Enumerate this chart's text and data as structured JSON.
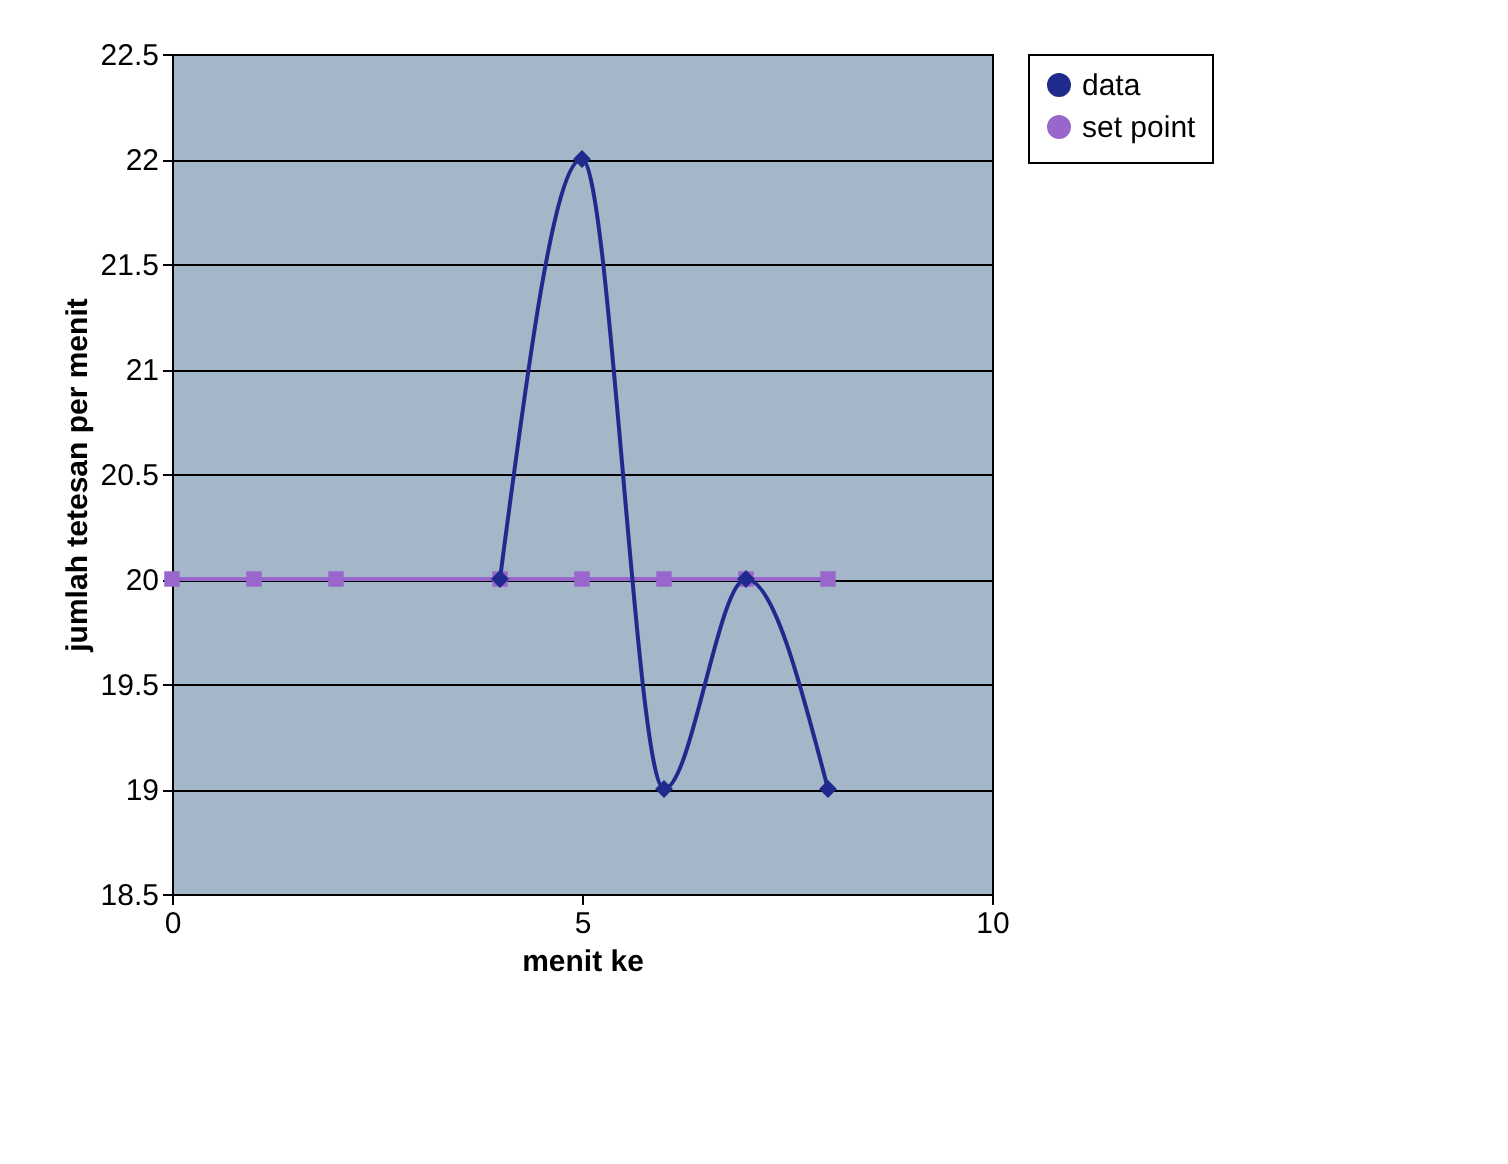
{
  "chart_data": {
    "type": "line",
    "xlabel": "menit ke",
    "ylabel": "jumlah tetesan per menit",
    "xlim": [
      0,
      10
    ],
    "xticks": [
      0,
      5,
      10
    ],
    "ylim": [
      18.5,
      22.5
    ],
    "yticks": [
      18.5,
      19,
      19.5,
      20,
      20.5,
      21,
      21.5,
      22,
      22.5
    ],
    "grid": "y",
    "legend": "right",
    "series": [
      {
        "name": "data",
        "color": "#1f2a8c",
        "marker": "diamond",
        "x": [
          4,
          5,
          6,
          7,
          8
        ],
        "values": [
          20,
          22,
          19,
          20,
          19
        ]
      },
      {
        "name": "set point",
        "color": "#9966cc",
        "marker": "square",
        "x": [
          0,
          1,
          2,
          4,
          5,
          6,
          7,
          8
        ],
        "values": [
          20,
          20,
          20,
          20,
          20,
          20,
          20,
          20
        ]
      }
    ]
  }
}
